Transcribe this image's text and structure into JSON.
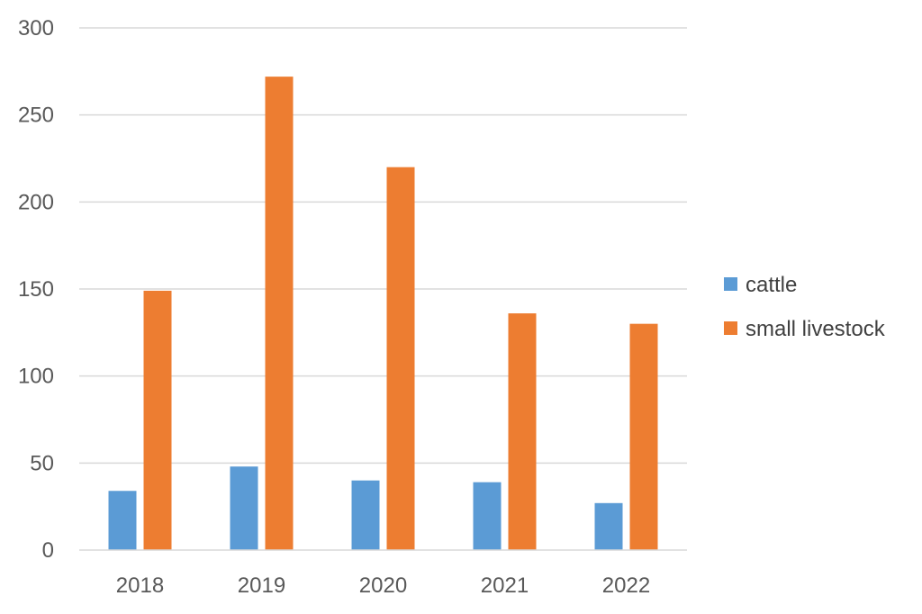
{
  "chart_data": {
    "type": "bar",
    "title": "",
    "xlabel": "",
    "ylabel": "",
    "categories": [
      "2018",
      "2019",
      "2020",
      "2021",
      "2022"
    ],
    "series": [
      {
        "name": "cattle",
        "color": "#5B9BD5",
        "values": [
          34,
          48,
          40,
          39,
          27
        ]
      },
      {
        "name": "small livestock",
        "color": "#ED7D31",
        "values": [
          149,
          272,
          220,
          136,
          130
        ]
      }
    ],
    "ylim": [
      0,
      300
    ],
    "yticks": [
      "0",
      "50",
      "100",
      "150",
      "200",
      "250",
      "300"
    ],
    "grid": true,
    "legend_position": "right"
  }
}
